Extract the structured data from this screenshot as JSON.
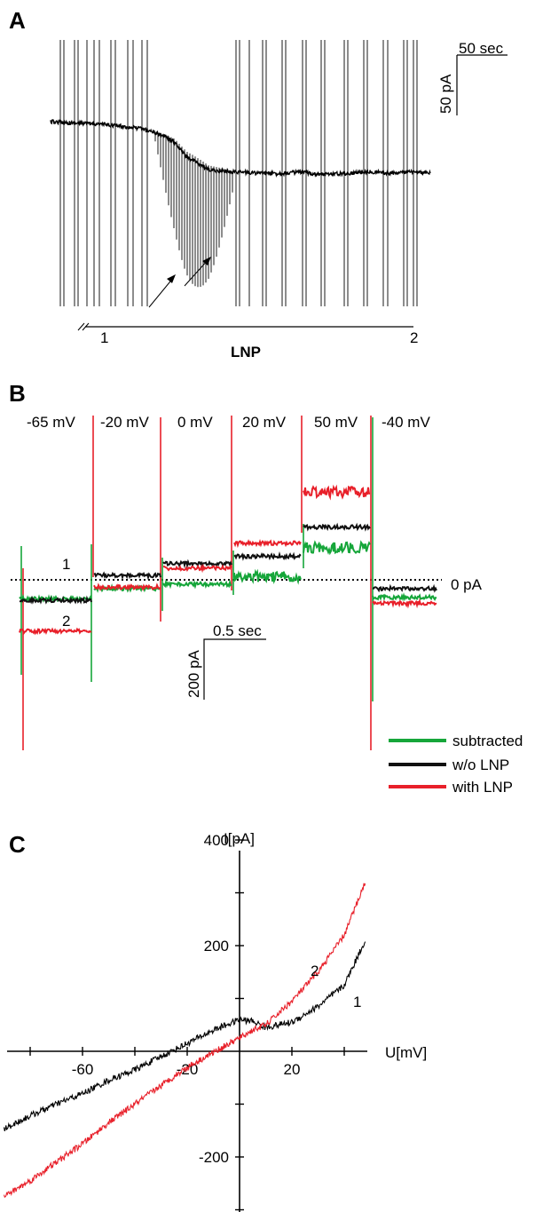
{
  "panels": {
    "a": {
      "letter": "A",
      "scalebar": {
        "time_label": "50 sec",
        "current_label": "50 pA"
      },
      "arrows": 2,
      "timeline": {
        "start_label": "1",
        "end_label": "2",
        "label": "LNP"
      }
    },
    "b": {
      "letter": "B",
      "voltage_steps": [
        "-65 mV",
        "-20 mV",
        "0 mV",
        "20 mV",
        "50 mV",
        "-40 mV"
      ],
      "trace_markers": {
        "upper": "1",
        "lower": "2"
      },
      "zero_line_label": "0 pA",
      "scalebar": {
        "time_label": "0.5 sec",
        "current_label": "200 pA"
      },
      "legend": [
        {
          "label": "subtracted",
          "color": "#16a63a"
        },
        {
          "label": "w/o LNP",
          "color": "#111111"
        },
        {
          "label": "with LNP",
          "color": "#e8202a"
        }
      ]
    },
    "c": {
      "letter": "C",
      "ylabel": "I[pA]",
      "xlabel": "U[mV]",
      "curve_labels": {
        "red": "2",
        "black": "1"
      }
    }
  },
  "chart_data": [
    {
      "type": "line",
      "panel": "A",
      "xlabel": "",
      "ylabel": "",
      "description_markers": [
        "1",
        "2"
      ],
      "series": [
        {
          "name": "",
          "color": "#000000",
          "x_sec": [
            0,
            25,
            50,
            75,
            100,
            112,
            125,
            137,
            150,
            175,
            200,
            225,
            250,
            275,
            300,
            325,
            350,
            375,
            400,
            420
          ],
          "y_pA": [
            0,
            -2,
            -3,
            -6,
            -10,
            -14,
            -20,
            -30,
            -50,
            -70,
            -72,
            -74,
            -75,
            -73,
            -76,
            -75,
            -72,
            -74,
            -73,
            -74
          ]
        }
      ]
    },
    {
      "type": "line",
      "panel": "B",
      "xlabel": "",
      "ylabel": "",
      "steps": [
        "-65 mV",
        "-20 mV",
        "0 mV",
        "20 mV",
        "50 mV",
        "-40 mV"
      ],
      "series": [
        {
          "name": "subtracted",
          "color": "#16a63a",
          "values_pA": [
            -65,
            -30,
            -15,
            10,
            110,
            -60
          ]
        },
        {
          "name": "w/o LNP",
          "color": "#111111",
          "values_pA": [
            -70,
            15,
            55,
            80,
            180,
            -30
          ]
        },
        {
          "name": "with LNP",
          "color": "#e8202a",
          "values_pA": [
            -175,
            -25,
            40,
            125,
            300,
            -80
          ]
        }
      ]
    },
    {
      "type": "line",
      "panel": "C",
      "xlabel": "U[mV]",
      "ylabel": "I[pA]",
      "x_ticks": [
        -60,
        -20,
        20
      ],
      "y_ticks": [
        400,
        200,
        -200
      ],
      "xlim": [
        -90,
        48
      ],
      "ylim": [
        -300,
        400
      ],
      "series": [
        {
          "name": "1",
          "color": "#000000",
          "x": [
            -90,
            -80,
            -70,
            -60,
            -50,
            -40,
            -30,
            -20,
            -10,
            0,
            5,
            10,
            20,
            30,
            40,
            48
          ],
          "y": [
            -147,
            -122,
            -100,
            -80,
            -55,
            -35,
            -10,
            15,
            40,
            60,
            57,
            45,
            55,
            85,
            125,
            210
          ]
        },
        {
          "name": "2",
          "color": "#e8202a",
          "x": [
            -90,
            -80,
            -70,
            -60,
            -50,
            -40,
            -30,
            -20,
            -10,
            0,
            5,
            10,
            20,
            30,
            40,
            48
          ],
          "y": [
            -275,
            -245,
            -210,
            -175,
            -135,
            -100,
            -65,
            -30,
            -2,
            25,
            40,
            50,
            95,
            150,
            220,
            320
          ]
        }
      ]
    }
  ]
}
